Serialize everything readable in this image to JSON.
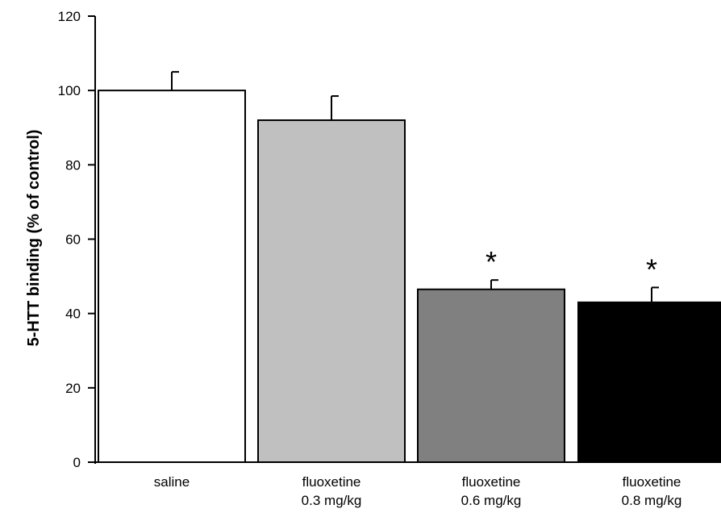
{
  "chart_data": {
    "type": "bar",
    "title": "",
    "xlabel": "",
    "ylabel": "5-HTT binding (% of control)",
    "ylim": [
      0,
      120
    ],
    "yticks": [
      0,
      20,
      40,
      60,
      80,
      100,
      120
    ],
    "categories": [
      {
        "line1": "saline",
        "line2": ""
      },
      {
        "line1": "fluoxetine",
        "line2": "0.3 mg/kg"
      },
      {
        "line1": "fluoxetine",
        "line2": "0.6 mg/kg"
      },
      {
        "line1": "fluoxetine",
        "line2": "0.8 mg/kg"
      }
    ],
    "values": [
      100,
      92,
      46.5,
      43
    ],
    "errors": [
      5,
      6.5,
      2.5,
      4
    ],
    "colors": [
      "#ffffff",
      "#c0c0c0",
      "#808080",
      "#000000"
    ],
    "annotations": [
      "",
      "",
      "*",
      "*"
    ],
    "grid": false,
    "legend": "none"
  }
}
